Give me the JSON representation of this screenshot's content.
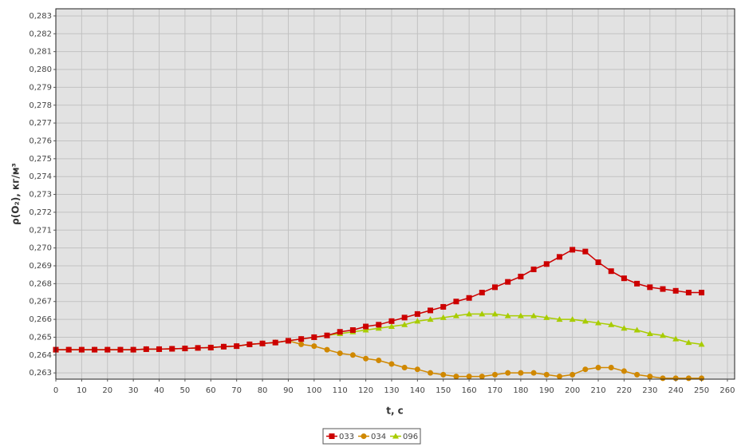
{
  "chart_data": {
    "type": "line",
    "x_label": "t, c",
    "y_label": "ρ(O₂), кг/м³",
    "x": [
      0,
      5,
      10,
      15,
      20,
      25,
      30,
      35,
      40,
      45,
      50,
      55,
      60,
      65,
      70,
      75,
      80,
      85,
      90,
      95,
      100,
      105,
      110,
      115,
      120,
      125,
      130,
      135,
      140,
      145,
      150,
      155,
      160,
      165,
      170,
      175,
      180,
      185,
      190,
      195,
      200,
      205,
      210,
      215,
      220,
      225,
      230,
      235,
      240,
      245,
      250
    ],
    "series": [
      {
        "name": "033",
        "color": "#cc0000",
        "marker": "square",
        "values": [
          0.2643,
          0.2643,
          0.2643,
          0.2643,
          0.2643,
          0.2643,
          0.2643,
          0.26433,
          0.26433,
          0.26435,
          0.26437,
          0.2644,
          0.26442,
          0.26447,
          0.2645,
          0.2646,
          0.26465,
          0.2647,
          0.2648,
          0.2649,
          0.265,
          0.2651,
          0.2653,
          0.2654,
          0.2656,
          0.2657,
          0.2659,
          0.2661,
          0.2663,
          0.2665,
          0.2667,
          0.267,
          0.2672,
          0.2675,
          0.2678,
          0.2681,
          0.2684,
          0.2688,
          0.2691,
          0.2695,
          0.2699,
          0.2698,
          0.2692,
          0.2687,
          0.2683,
          0.268,
          0.2678,
          0.2677,
          0.2676,
          0.2675,
          0.2675
        ]
      },
      {
        "name": "034",
        "color": "#d08800",
        "marker": "circle",
        "values": [
          0.2643,
          0.2643,
          0.2643,
          0.2643,
          0.2643,
          0.2643,
          0.2643,
          0.26433,
          0.26433,
          0.26435,
          0.26437,
          0.2644,
          0.26442,
          0.26447,
          0.2645,
          0.2646,
          0.26465,
          0.2647,
          0.2648,
          0.2646,
          0.2645,
          0.2643,
          0.2641,
          0.264,
          0.2638,
          0.2637,
          0.2635,
          0.2633,
          0.2632,
          0.263,
          0.2629,
          0.2628,
          0.2628,
          0.2628,
          0.2629,
          0.263,
          0.263,
          0.263,
          0.2629,
          0.2628,
          0.2629,
          0.2632,
          0.2633,
          0.2633,
          0.2631,
          0.2629,
          0.2628,
          0.2627,
          0.2627,
          0.2627,
          0.2627
        ]
      },
      {
        "name": "096",
        "color": "#a8cc00",
        "marker": "triangle",
        "values": [
          0.2643,
          0.2643,
          0.2643,
          0.2643,
          0.2643,
          0.2643,
          0.2643,
          0.26433,
          0.26433,
          0.26435,
          0.26437,
          0.2644,
          0.26442,
          0.26447,
          0.2645,
          0.2646,
          0.26465,
          0.2647,
          0.2648,
          0.2649,
          0.265,
          0.2651,
          0.2652,
          0.2653,
          0.2654,
          0.2655,
          0.2656,
          0.2657,
          0.2659,
          0.266,
          0.2661,
          0.2662,
          0.2663,
          0.2663,
          0.2663,
          0.2662,
          0.2662,
          0.2662,
          0.2661,
          0.266,
          0.266,
          0.2659,
          0.2658,
          0.2657,
          0.2655,
          0.2654,
          0.2652,
          0.2651,
          0.2649,
          0.2647,
          0.2646
        ]
      }
    ],
    "xlim": [
      0,
      262.8
    ],
    "ylim": [
      0.26265,
      0.2834
    ],
    "xticks": [
      0,
      10,
      20,
      30,
      40,
      50,
      60,
      70,
      80,
      90,
      100,
      110,
      120,
      130,
      140,
      150,
      160,
      170,
      180,
      190,
      200,
      210,
      220,
      230,
      240,
      250,
      260
    ],
    "yticks": [
      {
        "value": 0.263,
        "label": "0,263"
      },
      {
        "value": 0.264,
        "label": "0,264"
      },
      {
        "value": 0.265,
        "label": "0,265"
      },
      {
        "value": 0.266,
        "label": "0,266"
      },
      {
        "value": 0.267,
        "label": "0,267"
      },
      {
        "value": 0.268,
        "label": "0,268"
      },
      {
        "value": 0.269,
        "label": "0,269"
      },
      {
        "value": 0.27,
        "label": "0,270"
      },
      {
        "value": 0.271,
        "label": "0,271"
      },
      {
        "value": 0.272,
        "label": "0,272"
      },
      {
        "value": 0.273,
        "label": "0,273"
      },
      {
        "value": 0.274,
        "label": "0,274"
      },
      {
        "value": 0.275,
        "label": "0,275"
      },
      {
        "value": 0.276,
        "label": "0,276"
      },
      {
        "value": 0.277,
        "label": "0,277"
      },
      {
        "value": 0.278,
        "label": "0,278"
      },
      {
        "value": 0.279,
        "label": "0,279"
      },
      {
        "value": 0.28,
        "label": "0,280"
      },
      {
        "value": 0.281,
        "label": "0,281"
      },
      {
        "value": 0.282,
        "label": "0,282"
      },
      {
        "value": 0.283,
        "label": "0,283"
      }
    ],
    "grid": true
  }
}
